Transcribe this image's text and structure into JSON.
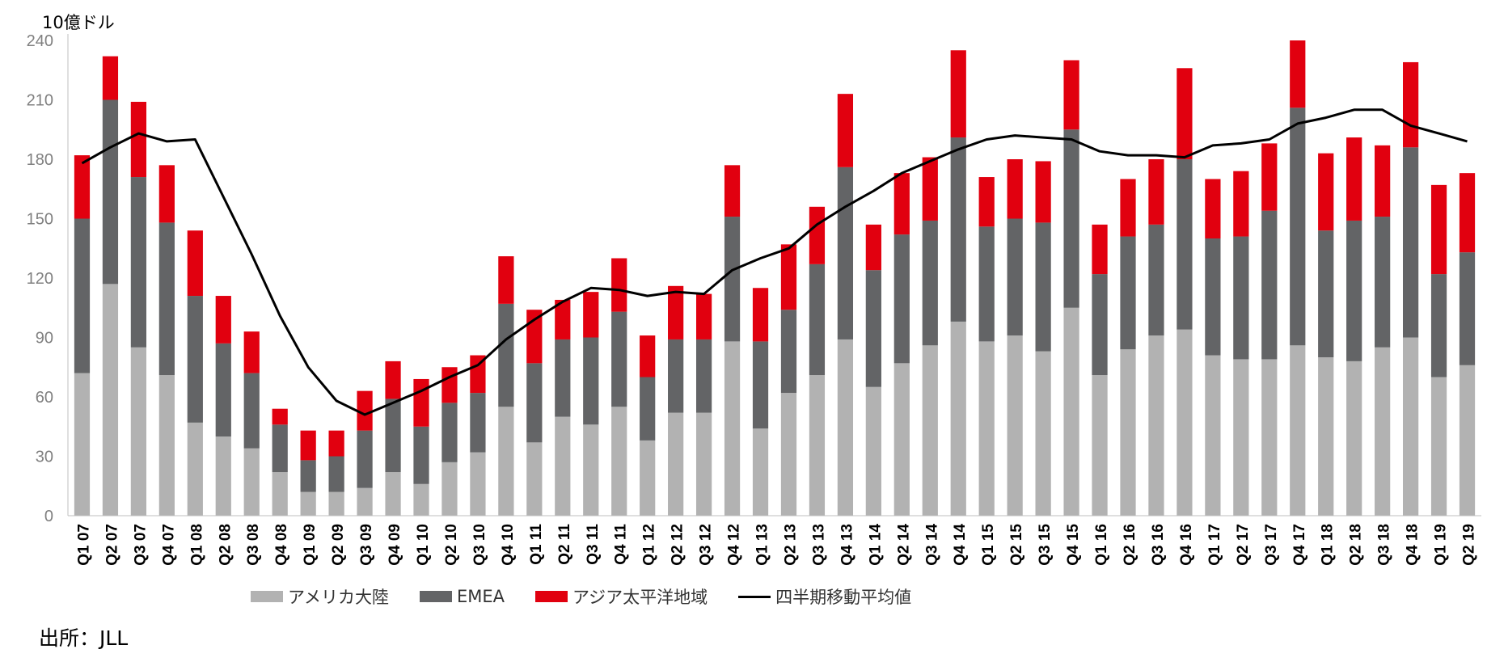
{
  "unit_label": "10億ドル",
  "source": "出所：JLL",
  "colors": {
    "americas": "#b2b2b2",
    "emea": "#636466",
    "apac": "#e1000f",
    "moving_avg": "#000000",
    "axis": "#bfbfbf",
    "tick_text": "#808080"
  },
  "chart_data": {
    "type": "bar",
    "stacked": true,
    "ylim": [
      0,
      240
    ],
    "yticks": [
      0,
      30,
      60,
      90,
      120,
      150,
      180,
      210,
      240
    ],
    "categories": [
      "Q1 07",
      "Q2 07",
      "Q3 07",
      "Q4 07",
      "Q1 08",
      "Q2 08",
      "Q3 08",
      "Q4 08",
      "Q1 09",
      "Q2 09",
      "Q3 09",
      "Q4 09",
      "Q1 10",
      "Q2 10",
      "Q3 10",
      "Q4 10",
      "Q1 11",
      "Q2 11",
      "Q3 11",
      "Q4 11",
      "Q1 12",
      "Q2 12",
      "Q3 12",
      "Q4 12",
      "Q1 13",
      "Q2 13",
      "Q3 13",
      "Q4 13",
      "Q1 14",
      "Q2 14",
      "Q3 14",
      "Q4 14",
      "Q1 15",
      "Q2 15",
      "Q3 15",
      "Q4 15",
      "Q1 16",
      "Q2 16",
      "Q3 16",
      "Q4 16",
      "Q1 17",
      "Q2 17",
      "Q3 17",
      "Q4 17",
      "Q1 18",
      "Q2 18",
      "Q3 18",
      "Q4 18",
      "Q1 19",
      "Q2 19"
    ],
    "series": [
      {
        "name": "アメリカ大陸",
        "color": "#b2b2b2",
        "values": [
          72,
          117,
          85,
          71,
          47,
          40,
          34,
          22,
          12,
          12,
          14,
          22,
          16,
          27,
          32,
          55,
          37,
          50,
          46,
          55,
          38,
          52,
          52,
          88,
          44,
          62,
          71,
          89,
          65,
          77,
          86,
          98,
          88,
          91,
          83,
          105,
          71,
          84,
          91,
          94,
          81,
          79,
          79,
          86,
          80,
          78,
          85,
          90,
          70,
          76
        ]
      },
      {
        "name": "EMEA",
        "color": "#636466",
        "values": [
          78,
          93,
          86,
          77,
          64,
          47,
          38,
          24,
          16,
          18,
          29,
          37,
          29,
          30,
          30,
          52,
          40,
          39,
          44,
          48,
          32,
          37,
          37,
          63,
          44,
          42,
          56,
          87,
          59,
          65,
          63,
          93,
          58,
          59,
          65,
          90,
          51,
          57,
          56,
          86,
          59,
          62,
          75,
          120,
          64,
          71,
          66,
          96,
          52,
          57
        ]
      },
      {
        "name": "アジア太平洋地域",
        "color": "#e1000f",
        "values": [
          32,
          22,
          38,
          29,
          33,
          24,
          21,
          8,
          15,
          13,
          20,
          19,
          24,
          18,
          19,
          24,
          27,
          20,
          23,
          27,
          21,
          27,
          23,
          26,
          27,
          33,
          29,
          37,
          23,
          31,
          32,
          44,
          25,
          30,
          31,
          35,
          25,
          29,
          33,
          46,
          30,
          33,
          34,
          34,
          39,
          42,
          36,
          43,
          45,
          40
        ]
      }
    ],
    "moving_average": {
      "name": "四半期移動平均値",
      "color": "#000000",
      "values": [
        178,
        186,
        193,
        189,
        190,
        161,
        132,
        101,
        75,
        58,
        51,
        57,
        63,
        70,
        76,
        89,
        99,
        108,
        115,
        114,
        111,
        113,
        112,
        124,
        130,
        135,
        147,
        156,
        164,
        173,
        179,
        185,
        190,
        192,
        191,
        190,
        184,
        182,
        182,
        181,
        187,
        188,
        190,
        198,
        201,
        205,
        205,
        197,
        193,
        189
      ]
    }
  }
}
